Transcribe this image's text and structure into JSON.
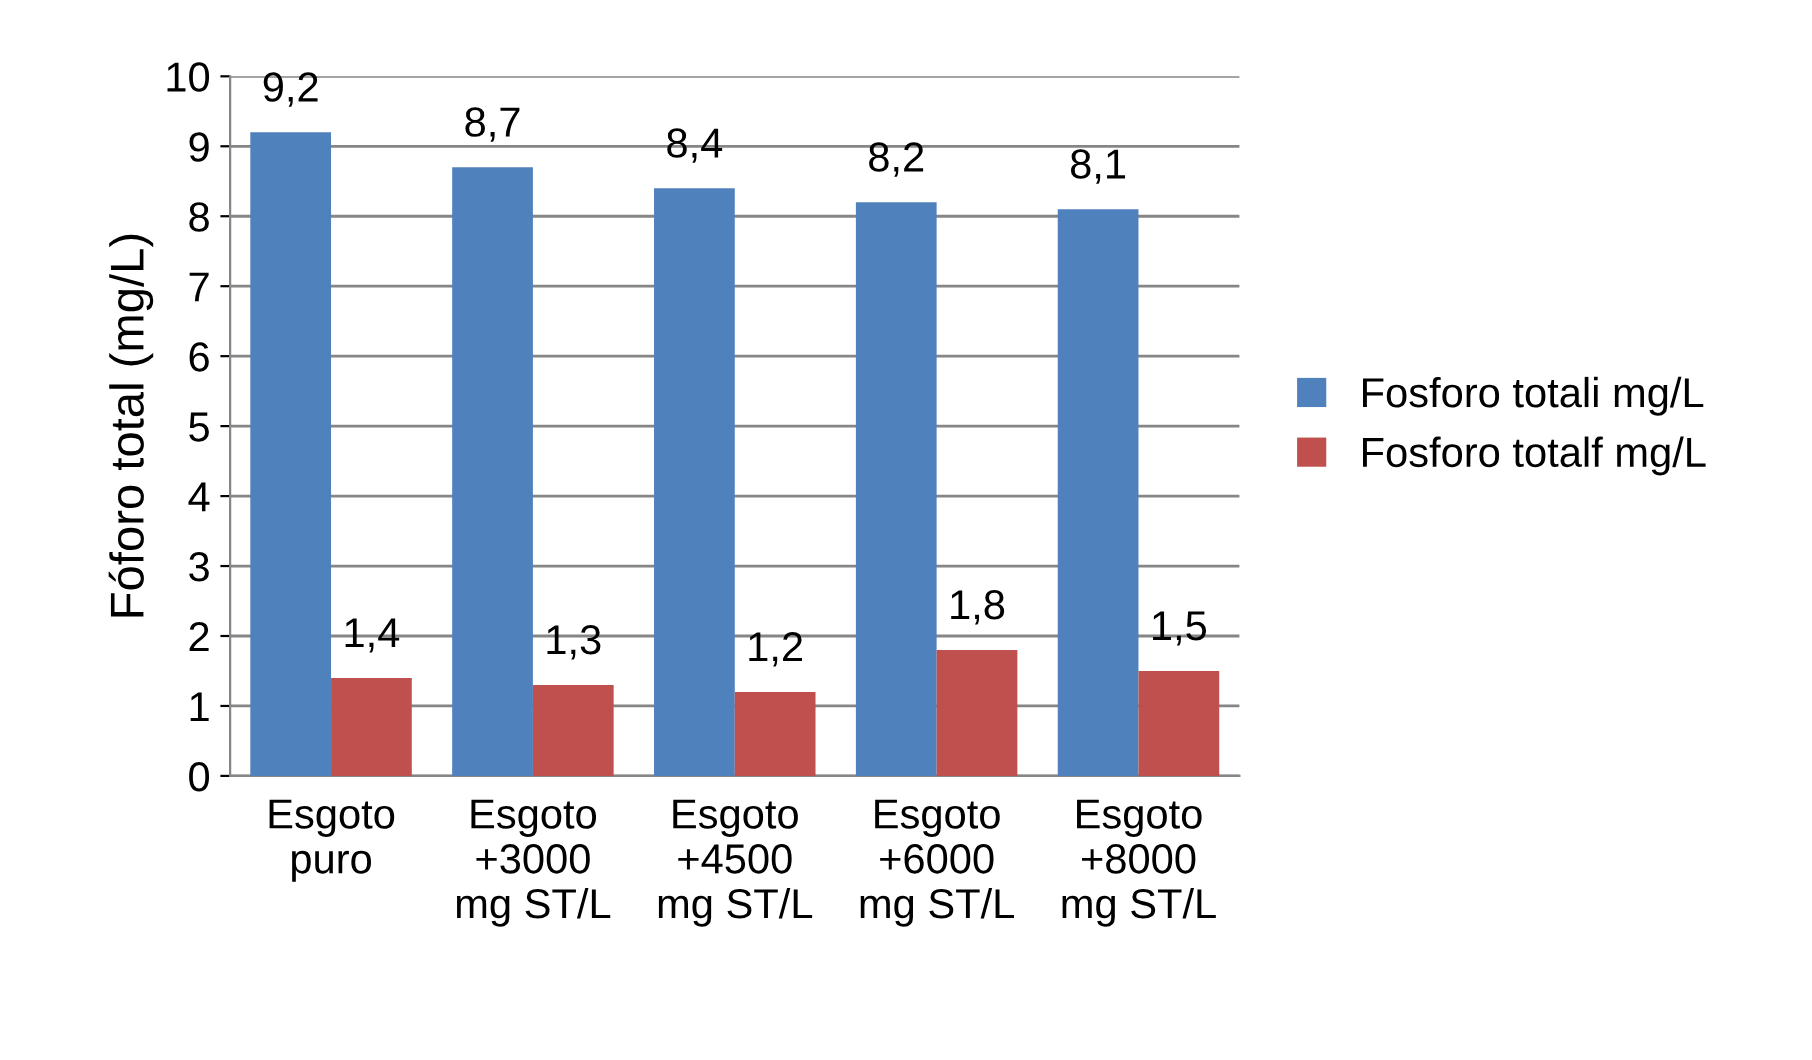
{
  "chart_data": {
    "type": "bar",
    "ylabel": "Fóforo total (mg/L)",
    "categories": [
      "Esgoto\npuro",
      "Esgoto\n+3000\nmg ST/L",
      "Esgoto\n+4500\nmg ST/L",
      "Esgoto\n+6000\nmg ST/L",
      "Esgoto\n+8000\nmg ST/L"
    ],
    "series": [
      {
        "name": "Fosforo totali mg/L",
        "color": "#4f81bd",
        "values": [
          9.2,
          8.7,
          8.4,
          8.2,
          8.1
        ],
        "value_labels": [
          "9,2",
          "8,7",
          "8,4",
          "8,2",
          "8,1"
        ]
      },
      {
        "name": "Fosforo totalf mg/L",
        "color": "#c0504d",
        "values": [
          1.4,
          1.3,
          1.2,
          1.8,
          1.5
        ],
        "value_labels": [
          "1,4",
          "1,3",
          "1,2",
          "1,8",
          "1,5"
        ]
      }
    ],
    "ylim": [
      0,
      10
    ],
    "yticks": [
      0,
      1,
      2,
      3,
      4,
      5,
      6,
      7,
      8,
      9,
      10
    ],
    "grid": "y",
    "legend": "right"
  }
}
